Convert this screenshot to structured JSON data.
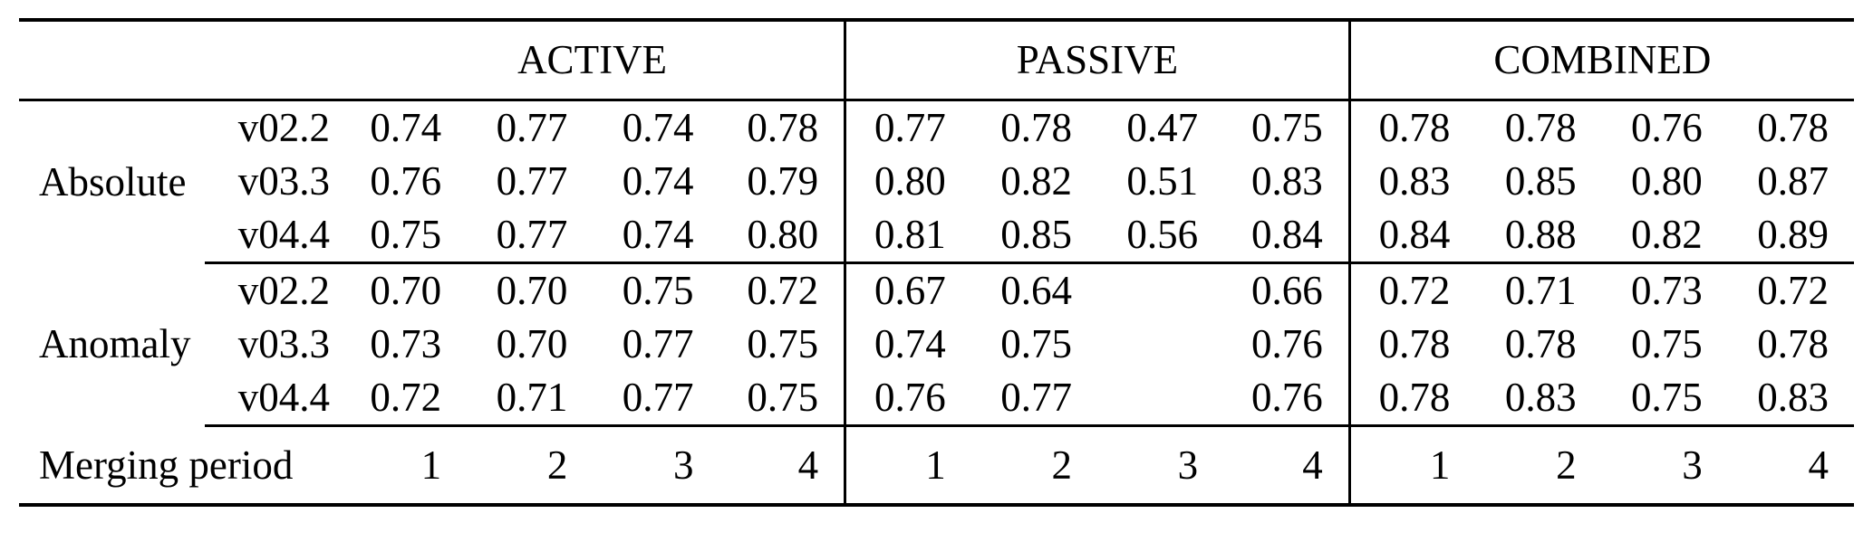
{
  "page": {
    "background": "#ffffff",
    "text_color": "#000000",
    "rule_color": "#000000"
  },
  "table": {
    "section_headers": [
      "ACTIVE",
      "PASSIVE",
      "COMBINED"
    ],
    "row_groups": [
      {
        "label": "Absolute",
        "rows": [
          {
            "version": "v02.2",
            "active": [
              "0.74",
              "0.77",
              "0.74",
              "0.78"
            ],
            "passive": [
              "0.77",
              "0.78",
              "0.47",
              "0.75"
            ],
            "combined": [
              "0.78",
              "0.78",
              "0.76",
              "0.78"
            ]
          },
          {
            "version": "v03.3",
            "active": [
              "0.76",
              "0.77",
              "0.74",
              "0.79"
            ],
            "passive": [
              "0.80",
              "0.82",
              "0.51",
              "0.83"
            ],
            "combined": [
              "0.83",
              "0.85",
              "0.80",
              "0.87"
            ]
          },
          {
            "version": "v04.4",
            "active": [
              "0.75",
              "0.77",
              "0.74",
              "0.80"
            ],
            "passive": [
              "0.81",
              "0.85",
              "0.56",
              "0.84"
            ],
            "combined": [
              "0.84",
              "0.88",
              "0.82",
              "0.89"
            ]
          }
        ]
      },
      {
        "label": "Anomaly",
        "rows": [
          {
            "version": "v02.2",
            "active": [
              "0.70",
              "0.70",
              "0.75",
              "0.72"
            ],
            "passive": [
              "0.67",
              "0.64",
              "",
              "0.66"
            ],
            "combined": [
              "0.72",
              "0.71",
              "0.73",
              "0.72"
            ]
          },
          {
            "version": "v03.3",
            "active": [
              "0.73",
              "0.70",
              "0.77",
              "0.75"
            ],
            "passive": [
              "0.74",
              "0.75",
              "",
              "0.76"
            ],
            "combined": [
              "0.78",
              "0.78",
              "0.75",
              "0.78"
            ]
          },
          {
            "version": "v04.4",
            "active": [
              "0.72",
              "0.71",
              "0.77",
              "0.75"
            ],
            "passive": [
              "0.76",
              "0.77",
              "",
              "0.76"
            ],
            "combined": [
              "0.78",
              "0.83",
              "0.75",
              "0.83"
            ]
          }
        ]
      }
    ],
    "footer": {
      "label": "Merging period",
      "active": [
        "1",
        "2",
        "3",
        "4"
      ],
      "passive": [
        "1",
        "2",
        "3",
        "4"
      ],
      "combined": [
        "1",
        "2",
        "3",
        "4"
      ]
    }
  },
  "chart_data": {
    "type": "table",
    "title": "",
    "sections": [
      "ACTIVE",
      "PASSIVE",
      "COMBINED"
    ],
    "merging_periods": [
      1,
      2,
      3,
      4
    ],
    "rows": [
      {
        "metric": "Absolute",
        "version": "v02.2",
        "ACTIVE": [
          0.74,
          0.77,
          0.74,
          0.78
        ],
        "PASSIVE": [
          0.77,
          0.78,
          0.47,
          0.75
        ],
        "COMBINED": [
          0.78,
          0.78,
          0.76,
          0.78
        ]
      },
      {
        "metric": "Absolute",
        "version": "v03.3",
        "ACTIVE": [
          0.76,
          0.77,
          0.74,
          0.79
        ],
        "PASSIVE": [
          0.8,
          0.82,
          0.51,
          0.83
        ],
        "COMBINED": [
          0.83,
          0.85,
          0.8,
          0.87
        ]
      },
      {
        "metric": "Absolute",
        "version": "v04.4",
        "ACTIVE": [
          0.75,
          0.77,
          0.74,
          0.8
        ],
        "PASSIVE": [
          0.81,
          0.85,
          0.56,
          0.84
        ],
        "COMBINED": [
          0.84,
          0.88,
          0.82,
          0.89
        ]
      },
      {
        "metric": "Anomaly",
        "version": "v02.2",
        "ACTIVE": [
          0.7,
          0.7,
          0.75,
          0.72
        ],
        "PASSIVE": [
          0.67,
          0.64,
          null,
          0.66
        ],
        "COMBINED": [
          0.72,
          0.71,
          0.73,
          0.72
        ]
      },
      {
        "metric": "Anomaly",
        "version": "v03.3",
        "ACTIVE": [
          0.73,
          0.7,
          0.77,
          0.75
        ],
        "PASSIVE": [
          0.74,
          0.75,
          null,
          0.76
        ],
        "COMBINED": [
          0.78,
          0.78,
          0.75,
          0.78
        ]
      },
      {
        "metric": "Anomaly",
        "version": "v04.4",
        "ACTIVE": [
          0.72,
          0.71,
          0.77,
          0.75
        ],
        "PASSIVE": [
          0.76,
          0.77,
          null,
          0.76
        ],
        "COMBINED": [
          0.78,
          0.83,
          0.75,
          0.83
        ]
      }
    ],
    "footer_row_label": "Merging period"
  }
}
